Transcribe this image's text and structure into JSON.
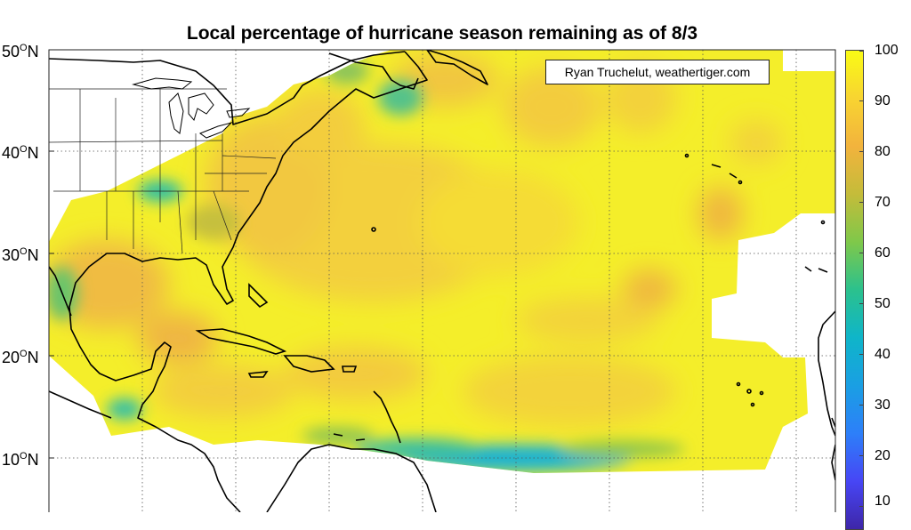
{
  "title": "Local percentage of hurricane season remaining as of 8/3",
  "credit": "Ryan Truchelut, weathertiger.com",
  "y_axis": {
    "labels": [
      {
        "deg": "50",
        "sup": "O",
        "hem": "N"
      },
      {
        "deg": "40",
        "sup": "O",
        "hem": "N"
      },
      {
        "deg": "30",
        "sup": "O",
        "hem": "N"
      },
      {
        "deg": "20",
        "sup": "O",
        "hem": "N"
      },
      {
        "deg": "10",
        "sup": "O",
        "hem": "N"
      }
    ]
  },
  "colorbar": {
    "labels": [
      "100",
      "90",
      "80",
      "70",
      "60",
      "50",
      "40",
      "30",
      "20",
      "10"
    ],
    "colormap": "parula",
    "colors": [
      "#3e26a8",
      "#4746f5",
      "#2d7ff9",
      "#1a9fe3",
      "#0fb5c9",
      "#2bc18d",
      "#7fc84a",
      "#c4bc3a",
      "#f2b33d",
      "#f8d431",
      "#f9fb15"
    ]
  }
}
